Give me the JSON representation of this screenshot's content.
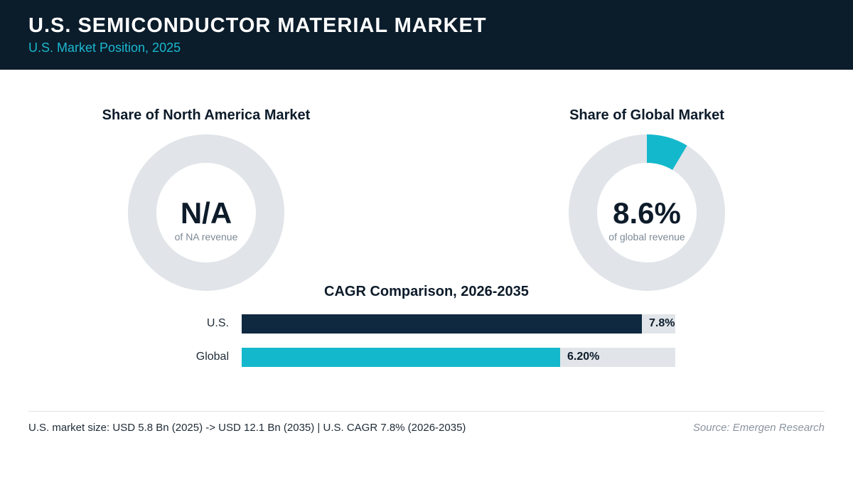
{
  "header": {
    "title": "U.S. SEMICONDUCTOR MATERIAL MARKET",
    "subtitle": "U.S. Market Position, 2025"
  },
  "colors": {
    "header_bg": "#0b1c2b",
    "accent_teal": "#14b8cc",
    "navy": "#0e2940",
    "track_gray": "#e1e5e9"
  },
  "chart_data": [
    {
      "type": "pie",
      "title": "Share of North America Market",
      "center_value": "N/A",
      "center_caption": "of NA revenue",
      "values": [],
      "color": "#14b8cc"
    },
    {
      "type": "pie",
      "title": "Share of Global Market",
      "center_value": "8.6%",
      "center_caption": "of global revenue",
      "values": [
        8.6
      ],
      "color": "#14b8cc"
    },
    {
      "type": "bar",
      "orientation": "horizontal",
      "title": "CAGR Comparison, 2026-2035",
      "categories": [
        "U.S.",
        "Global"
      ],
      "values": [
        7.8,
        6.2
      ],
      "value_labels": [
        "7.8%",
        "6.20%"
      ],
      "colors": [
        "#0e2940",
        "#14b8cc"
      ],
      "xlim": [
        0,
        8.45
      ]
    }
  ],
  "footer": {
    "note": "U.S. market size: USD 5.8 Bn (2025) -> USD 12.1 Bn (2035)  |  U.S. CAGR 7.8% (2026-2035)",
    "source": "Source: Emergen Research"
  }
}
